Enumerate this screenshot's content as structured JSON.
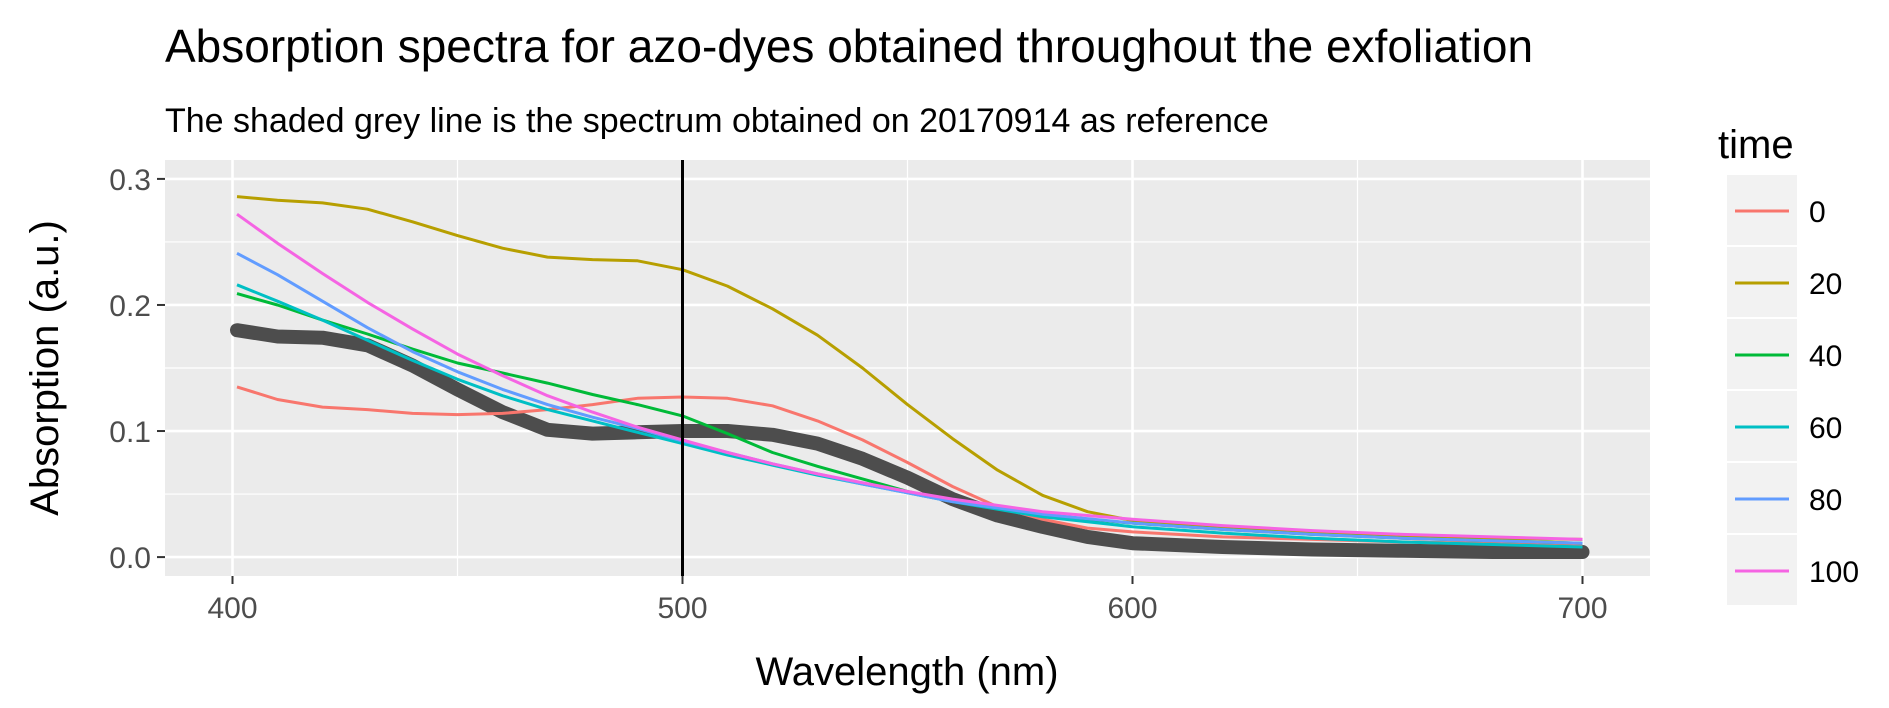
{
  "chart_data": {
    "type": "line",
    "title": "Absorption spectra for azo-dyes obtained throughout the exfoliation",
    "subtitle": "The shaded grey line is the spectrum obtained on 20170914 as reference",
    "xlabel": "Wavelength (nm)",
    "ylabel": "Absorption (a.u.)",
    "xlim": [
      385,
      715
    ],
    "ylim": [
      -0.015,
      0.315
    ],
    "x_ticks": [
      "400",
      "500",
      "600",
      "700"
    ],
    "y_ticks": [
      "0.0",
      "0.1",
      "0.2",
      "0.3"
    ],
    "grid": true,
    "legend": {
      "title": "time",
      "position": "right"
    },
    "vline_x": 500,
    "reference": {
      "color": "#4d4d4d",
      "points": [
        [
          401,
          0.18
        ],
        [
          410,
          0.175
        ],
        [
          420,
          0.174
        ],
        [
          430,
          0.168
        ],
        [
          440,
          0.152
        ],
        [
          450,
          0.133
        ],
        [
          460,
          0.115
        ],
        [
          470,
          0.101
        ],
        [
          480,
          0.098
        ],
        [
          490,
          0.099
        ],
        [
          500,
          0.1
        ],
        [
          510,
          0.1
        ],
        [
          520,
          0.097
        ],
        [
          530,
          0.09
        ],
        [
          540,
          0.078
        ],
        [
          550,
          0.063
        ],
        [
          560,
          0.046
        ],
        [
          570,
          0.033
        ],
        [
          580,
          0.024
        ],
        [
          590,
          0.016
        ],
        [
          600,
          0.011
        ],
        [
          620,
          0.008
        ],
        [
          640,
          0.006
        ],
        [
          660,
          0.005
        ],
        [
          680,
          0.004
        ],
        [
          700,
          0.004
        ]
      ]
    },
    "series": [
      {
        "name": "0",
        "color": "#F8766D",
        "points": [
          [
            401,
            0.135
          ],
          [
            410,
            0.125
          ],
          [
            420,
            0.119
          ],
          [
            430,
            0.117
          ],
          [
            440,
            0.114
          ],
          [
            450,
            0.113
          ],
          [
            460,
            0.114
          ],
          [
            470,
            0.117
          ],
          [
            480,
            0.121
          ],
          [
            490,
            0.126
          ],
          [
            500,
            0.127
          ],
          [
            510,
            0.126
          ],
          [
            520,
            0.12
          ],
          [
            530,
            0.108
          ],
          [
            540,
            0.093
          ],
          [
            550,
            0.075
          ],
          [
            560,
            0.056
          ],
          [
            570,
            0.04
          ],
          [
            580,
            0.03
          ],
          [
            590,
            0.023
          ],
          [
            600,
            0.02
          ],
          [
            620,
            0.016
          ],
          [
            640,
            0.014
          ],
          [
            660,
            0.012
          ],
          [
            680,
            0.011
          ],
          [
            700,
            0.01
          ]
        ]
      },
      {
        "name": "20",
        "color": "#B79F00",
        "points": [
          [
            401,
            0.286
          ],
          [
            410,
            0.283
          ],
          [
            420,
            0.281
          ],
          [
            430,
            0.276
          ],
          [
            440,
            0.266
          ],
          [
            450,
            0.255
          ],
          [
            460,
            0.245
          ],
          [
            470,
            0.238
          ],
          [
            480,
            0.236
          ],
          [
            490,
            0.235
          ],
          [
            500,
            0.228
          ],
          [
            510,
            0.215
          ],
          [
            520,
            0.197
          ],
          [
            530,
            0.176
          ],
          [
            540,
            0.15
          ],
          [
            550,
            0.121
          ],
          [
            560,
            0.094
          ],
          [
            570,
            0.069
          ],
          [
            580,
            0.049
          ],
          [
            590,
            0.036
          ],
          [
            600,
            0.029
          ],
          [
            620,
            0.024
          ],
          [
            640,
            0.02
          ],
          [
            660,
            0.017
          ],
          [
            680,
            0.015
          ],
          [
            700,
            0.014
          ]
        ]
      },
      {
        "name": "40",
        "color": "#00BA38",
        "points": [
          [
            401,
            0.209
          ],
          [
            410,
            0.2
          ],
          [
            420,
            0.188
          ],
          [
            430,
            0.177
          ],
          [
            440,
            0.165
          ],
          [
            450,
            0.154
          ],
          [
            460,
            0.146
          ],
          [
            470,
            0.138
          ],
          [
            480,
            0.129
          ],
          [
            490,
            0.121
          ],
          [
            500,
            0.112
          ],
          [
            510,
            0.098
          ],
          [
            520,
            0.083
          ],
          [
            530,
            0.072
          ],
          [
            540,
            0.062
          ],
          [
            550,
            0.052
          ],
          [
            560,
            0.044
          ],
          [
            570,
            0.038
          ],
          [
            580,
            0.033
          ],
          [
            600,
            0.027
          ],
          [
            620,
            0.022
          ],
          [
            640,
            0.018
          ],
          [
            660,
            0.015
          ],
          [
            680,
            0.013
          ],
          [
            700,
            0.011
          ]
        ]
      },
      {
        "name": "60",
        "color": "#00BFC4",
        "points": [
          [
            401,
            0.216
          ],
          [
            410,
            0.203
          ],
          [
            420,
            0.188
          ],
          [
            430,
            0.172
          ],
          [
            440,
            0.156
          ],
          [
            450,
            0.141
          ],
          [
            460,
            0.128
          ],
          [
            470,
            0.117
          ],
          [
            480,
            0.108
          ],
          [
            490,
            0.099
          ],
          [
            500,
            0.09
          ],
          [
            510,
            0.081
          ],
          [
            520,
            0.073
          ],
          [
            530,
            0.065
          ],
          [
            540,
            0.058
          ],
          [
            550,
            0.051
          ],
          [
            560,
            0.044
          ],
          [
            570,
            0.038
          ],
          [
            580,
            0.032
          ],
          [
            600,
            0.024
          ],
          [
            620,
            0.019
          ],
          [
            640,
            0.015
          ],
          [
            660,
            0.012
          ],
          [
            680,
            0.01
          ],
          [
            700,
            0.008
          ]
        ]
      },
      {
        "name": "80",
        "color": "#619CFF",
        "points": [
          [
            401,
            0.241
          ],
          [
            410,
            0.224
          ],
          [
            420,
            0.203
          ],
          [
            430,
            0.182
          ],
          [
            440,
            0.163
          ],
          [
            450,
            0.147
          ],
          [
            460,
            0.133
          ],
          [
            470,
            0.121
          ],
          [
            480,
            0.111
          ],
          [
            490,
            0.102
          ],
          [
            500,
            0.092
          ],
          [
            510,
            0.083
          ],
          [
            520,
            0.074
          ],
          [
            530,
            0.066
          ],
          [
            540,
            0.058
          ],
          [
            550,
            0.051
          ],
          [
            560,
            0.044
          ],
          [
            570,
            0.039
          ],
          [
            580,
            0.034
          ],
          [
            600,
            0.027
          ],
          [
            620,
            0.022
          ],
          [
            640,
            0.018
          ],
          [
            660,
            0.015
          ],
          [
            680,
            0.013
          ],
          [
            700,
            0.011
          ]
        ]
      },
      {
        "name": "100",
        "color": "#F564E3",
        "points": [
          [
            401,
            0.272
          ],
          [
            410,
            0.249
          ],
          [
            420,
            0.225
          ],
          [
            430,
            0.202
          ],
          [
            440,
            0.181
          ],
          [
            450,
            0.161
          ],
          [
            460,
            0.144
          ],
          [
            470,
            0.128
          ],
          [
            480,
            0.115
          ],
          [
            490,
            0.103
          ],
          [
            500,
            0.093
          ],
          [
            510,
            0.083
          ],
          [
            520,
            0.074
          ],
          [
            530,
            0.066
          ],
          [
            540,
            0.059
          ],
          [
            550,
            0.052
          ],
          [
            560,
            0.046
          ],
          [
            570,
            0.041
          ],
          [
            580,
            0.036
          ],
          [
            600,
            0.03
          ],
          [
            620,
            0.025
          ],
          [
            640,
            0.021
          ],
          [
            660,
            0.018
          ],
          [
            680,
            0.016
          ],
          [
            700,
            0.014
          ]
        ]
      }
    ]
  }
}
